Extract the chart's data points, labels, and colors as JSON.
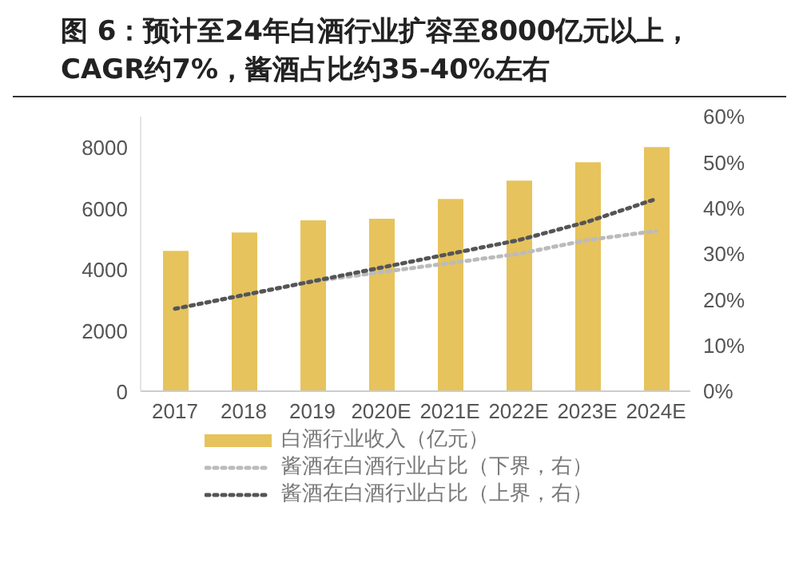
{
  "chart_data": {
    "type": "bar",
    "title": "图 6：预计至24年白酒行业扩容至8000亿元以上，CAGR约7%，酱酒占比约35-40%左右",
    "categories": [
      "2017",
      "2018",
      "2019",
      "2020E",
      "2021E",
      "2022E",
      "2023E",
      "2024E"
    ],
    "series": [
      {
        "name": "白酒行业收入（亿元）",
        "type": "bar",
        "color": "#e6c35c",
        "values": [
          4600,
          5200,
          5600,
          5650,
          6300,
          6900,
          7500,
          8000
        ]
      },
      {
        "name": "酱酒在白酒行业占比（下界，右）",
        "type": "line",
        "axis": "y2",
        "color": "#bbbbbb",
        "line_style": "dotted",
        "values": [
          18,
          21,
          24,
          26,
          28,
          30,
          33,
          35
        ]
      },
      {
        "name": "酱酒在白酒行业占比（上界，右）",
        "type": "line",
        "axis": "y2",
        "color": "#555555",
        "line_style": "dotted",
        "values": [
          18,
          21,
          24,
          27,
          30,
          33,
          37,
          42
        ]
      }
    ],
    "ylim": [
      0,
      9000
    ],
    "yticks": [
      0,
      2000,
      4000,
      6000,
      8000
    ],
    "y2lim": [
      0,
      60
    ],
    "y2ticks": [
      {
        "value": 0,
        "label": "0%"
      },
      {
        "value": 10,
        "label": "10%"
      },
      {
        "value": 20,
        "label": "20%"
      },
      {
        "value": 30,
        "label": "30%"
      },
      {
        "value": 40,
        "label": "40%"
      },
      {
        "value": 50,
        "label": "50%"
      },
      {
        "value": 60,
        "label": "60%"
      }
    ],
    "marker": "none",
    "grid": false,
    "legend": "bottom"
  }
}
